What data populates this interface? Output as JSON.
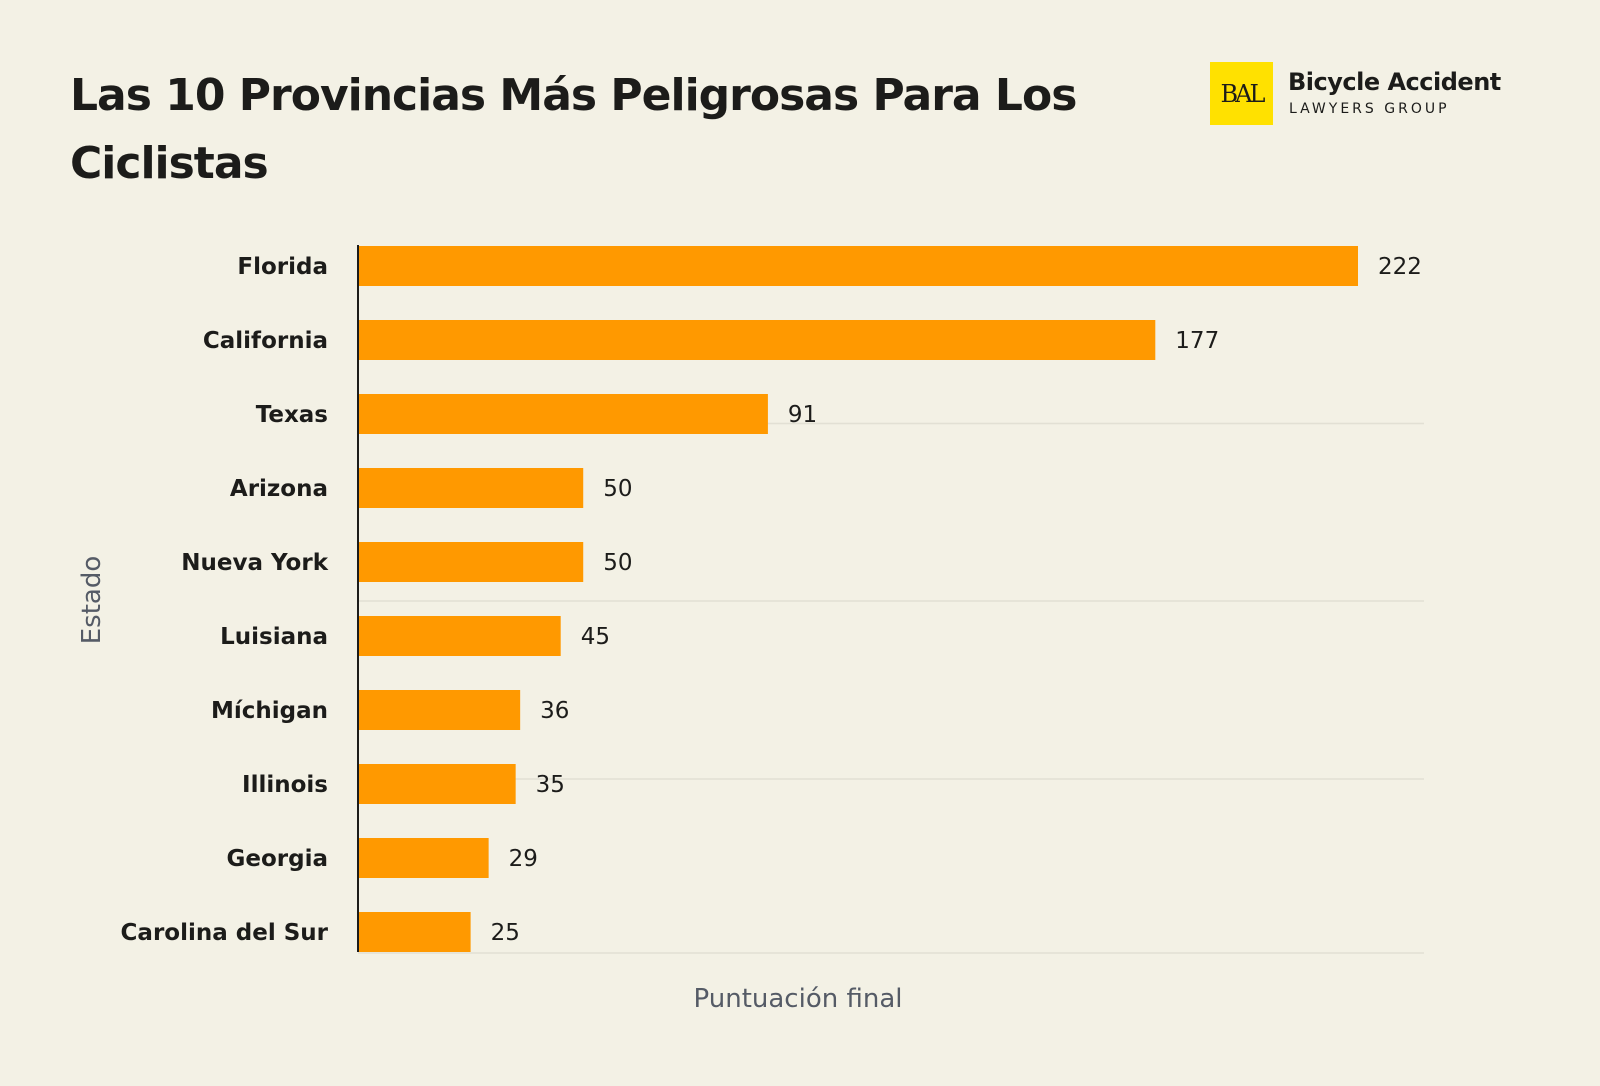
{
  "header": {
    "title": "Las 10 Provincias Más Peligrosas Para Los Ciclistas"
  },
  "logo": {
    "mark": "BAL",
    "line1": "Bicycle Accident",
    "line2": "LAWYERS GROUP",
    "color": "#ffe100"
  },
  "chart_data": {
    "type": "bar",
    "orientation": "horizontal",
    "title": "Las 10 Provincias Más Peligrosas Para Los Ciclistas",
    "xlabel": "Puntuación final",
    "ylabel": "Estado",
    "categories": [
      "Florida",
      "California",
      "Texas",
      "Arizona",
      "Nueva York",
      "Luisiana",
      "Míchigan",
      "Illinois",
      "Georgia",
      "Carolina del Sur"
    ],
    "values": [
      222,
      177,
      91,
      50,
      50,
      45,
      36,
      35,
      29,
      25
    ],
    "xlim": [
      0,
      236
    ],
    "bar_color": "#ff9900",
    "data_labels": true,
    "grid": "faint horizontal lines"
  }
}
